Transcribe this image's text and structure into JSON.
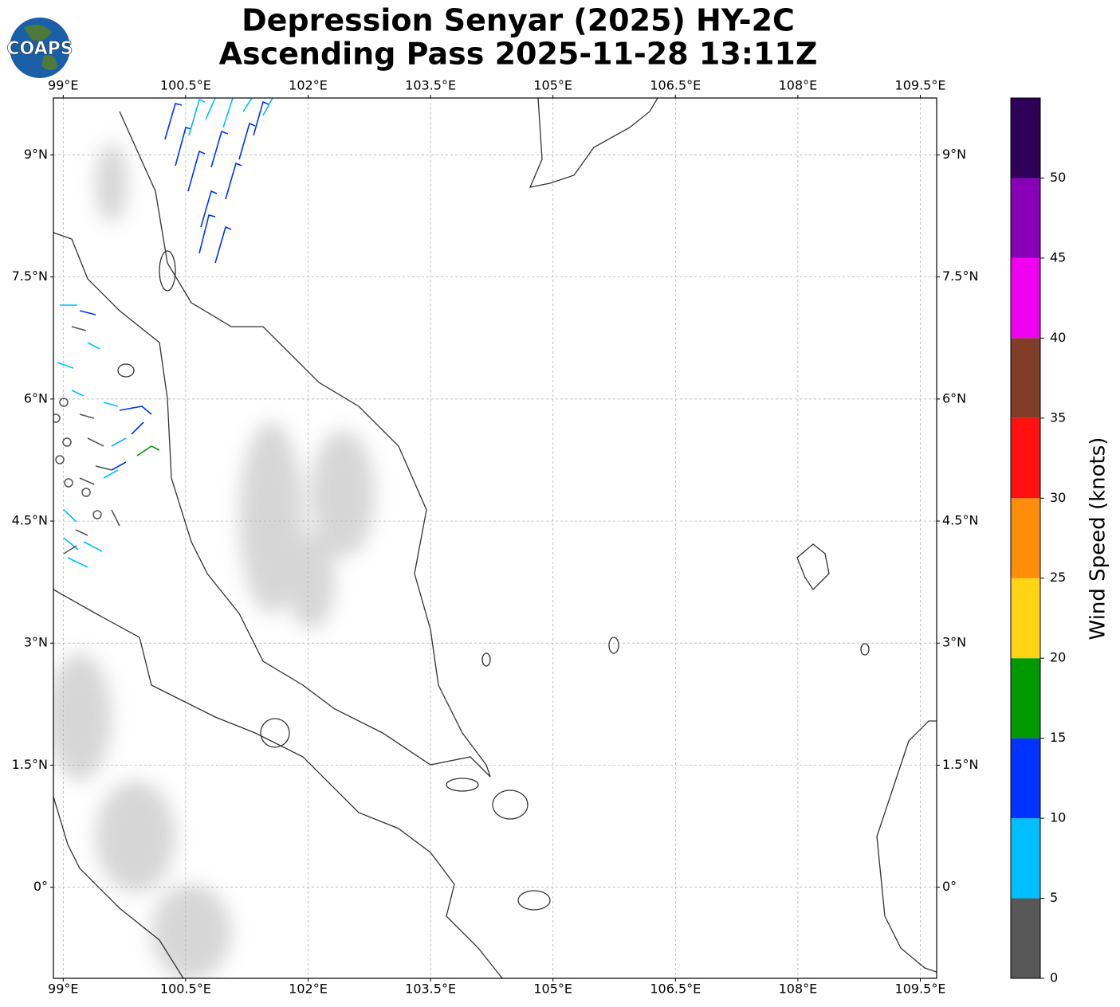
{
  "header": {
    "title": "Depression Senyar (2025) HY-2C",
    "subtitle": "Ascending Pass 2025-11-28 13:11Z",
    "logo": "COAPS"
  },
  "map": {
    "xlim": [
      98.88,
      109.7
    ],
    "ylim": [
      -1.12,
      9.7
    ],
    "xticks": [
      {
        "value": 99,
        "label": "99°E"
      },
      {
        "value": 100.5,
        "label": "100.5°E"
      },
      {
        "value": 102,
        "label": "102°E"
      },
      {
        "value": 103.5,
        "label": "103.5°E"
      },
      {
        "value": 105,
        "label": "105°E"
      },
      {
        "value": 106.5,
        "label": "106.5°E"
      },
      {
        "value": 108,
        "label": "108°E"
      },
      {
        "value": 109.5,
        "label": "109.5°E"
      }
    ],
    "yticks": [
      {
        "value": 9,
        "label": "9°N"
      },
      {
        "value": 7.5,
        "label": "7.5°N"
      },
      {
        "value": 6,
        "label": "6°N"
      },
      {
        "value": 4.5,
        "label": "4.5°N"
      },
      {
        "value": 3,
        "label": "3°N"
      },
      {
        "value": 1.5,
        "label": "1.5°N"
      },
      {
        "value": 0,
        "label": "0°"
      }
    ],
    "grid": true
  },
  "colorbar": {
    "label": "Wind Speed (knots)",
    "lim": [
      0,
      55
    ],
    "ticks": [
      0,
      5,
      10,
      15,
      20,
      25,
      30,
      35,
      40,
      45,
      50
    ],
    "colors": [
      "#585858",
      "#00bfff",
      "#0033ff",
      "#009900",
      "#ffd414",
      "#ff8c0a",
      "#ff1010",
      "#803d28",
      "#f000f0",
      "#8800b8",
      "#2e0058"
    ]
  }
}
